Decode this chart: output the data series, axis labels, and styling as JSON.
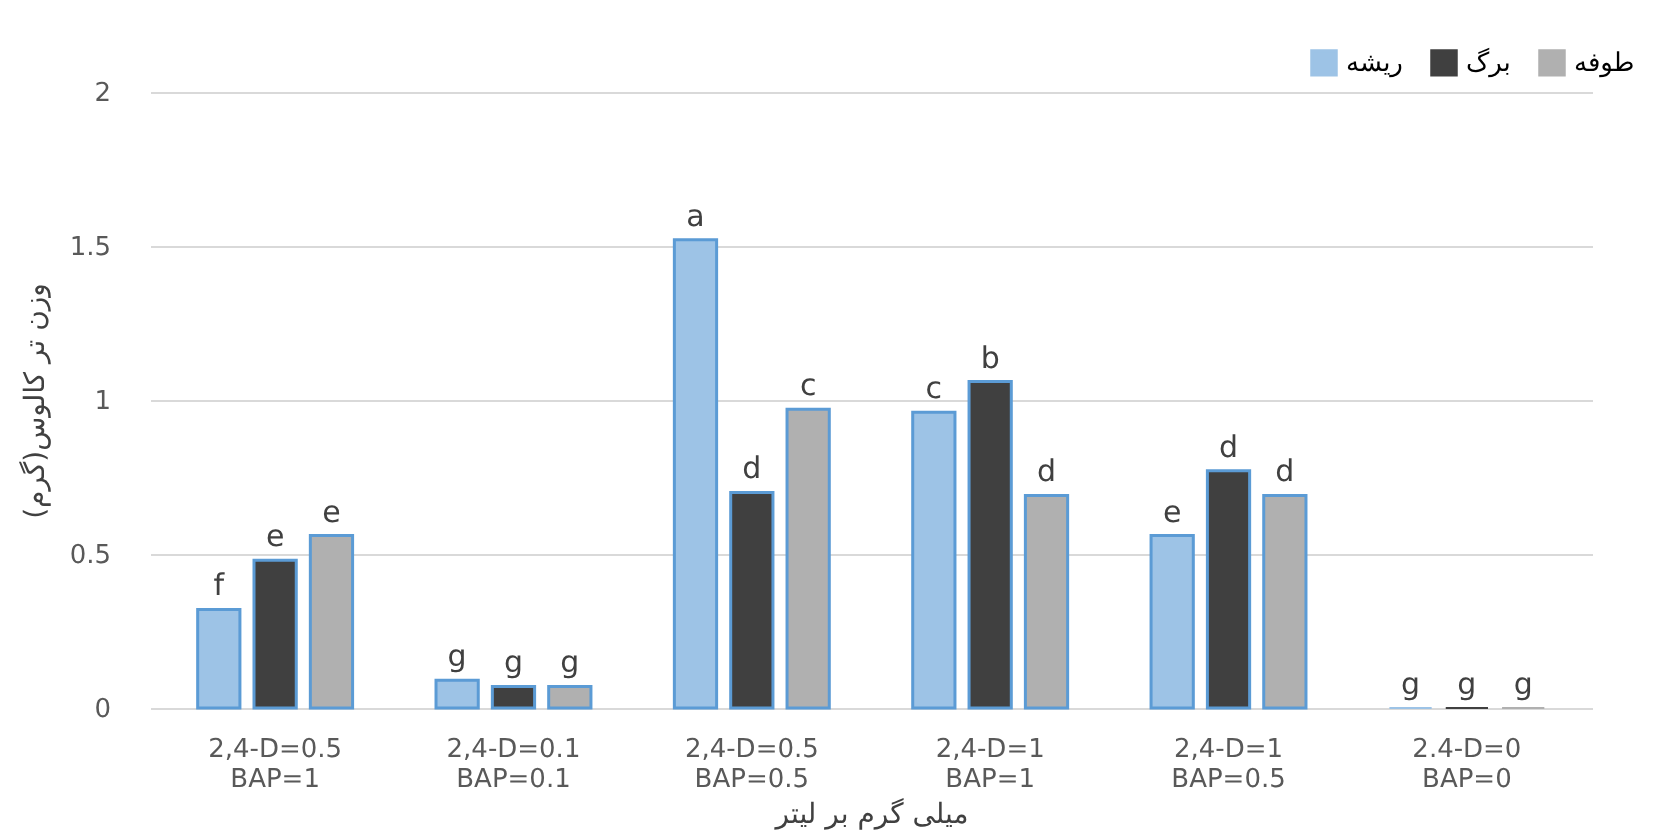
{
  "chart_data": {
    "type": "bar",
    "xlabel": "میلی گرم بر لیتر",
    "ylabel": "وزن تر کالوس(گرم)",
    "categories": [
      "2,4-D=0.5\nBAP=1",
      "2,4-D=0.1\nBAP=0.1",
      "2,4-D=0.5\nBAP=0.5",
      "2,4-D=1\nBAP=1",
      "2,4-D=1\nBAP=0.5",
      "2.4-D=0\nBAP=0"
    ],
    "series": [
      {
        "name": "ریشه",
        "color": "#9dc3e6",
        "values": [
          0.32,
          0.09,
          1.52,
          0.96,
          0.56,
          0
        ],
        "value_labels": [
          "f",
          "g",
          "a",
          "c",
          "e",
          "g"
        ]
      },
      {
        "name": "برگ",
        "color": "#404040",
        "values": [
          0.48,
          0.07,
          0.7,
          1.06,
          0.77,
          0
        ],
        "value_labels": [
          "e",
          "g",
          "d",
          "b",
          "d",
          "g"
        ]
      },
      {
        "name": "طوفه",
        "color": "#b0b0b0",
        "values": [
          0.56,
          0.07,
          0.97,
          0.69,
          0.69,
          0
        ],
        "value_labels": [
          "e",
          "g",
          "c",
          "d",
          "d",
          "g"
        ]
      }
    ],
    "ylim": [
      0,
      2
    ],
    "yticks": [
      0,
      0.5,
      1,
      1.5,
      2
    ],
    "grid": "y",
    "legend": "top right"
  }
}
